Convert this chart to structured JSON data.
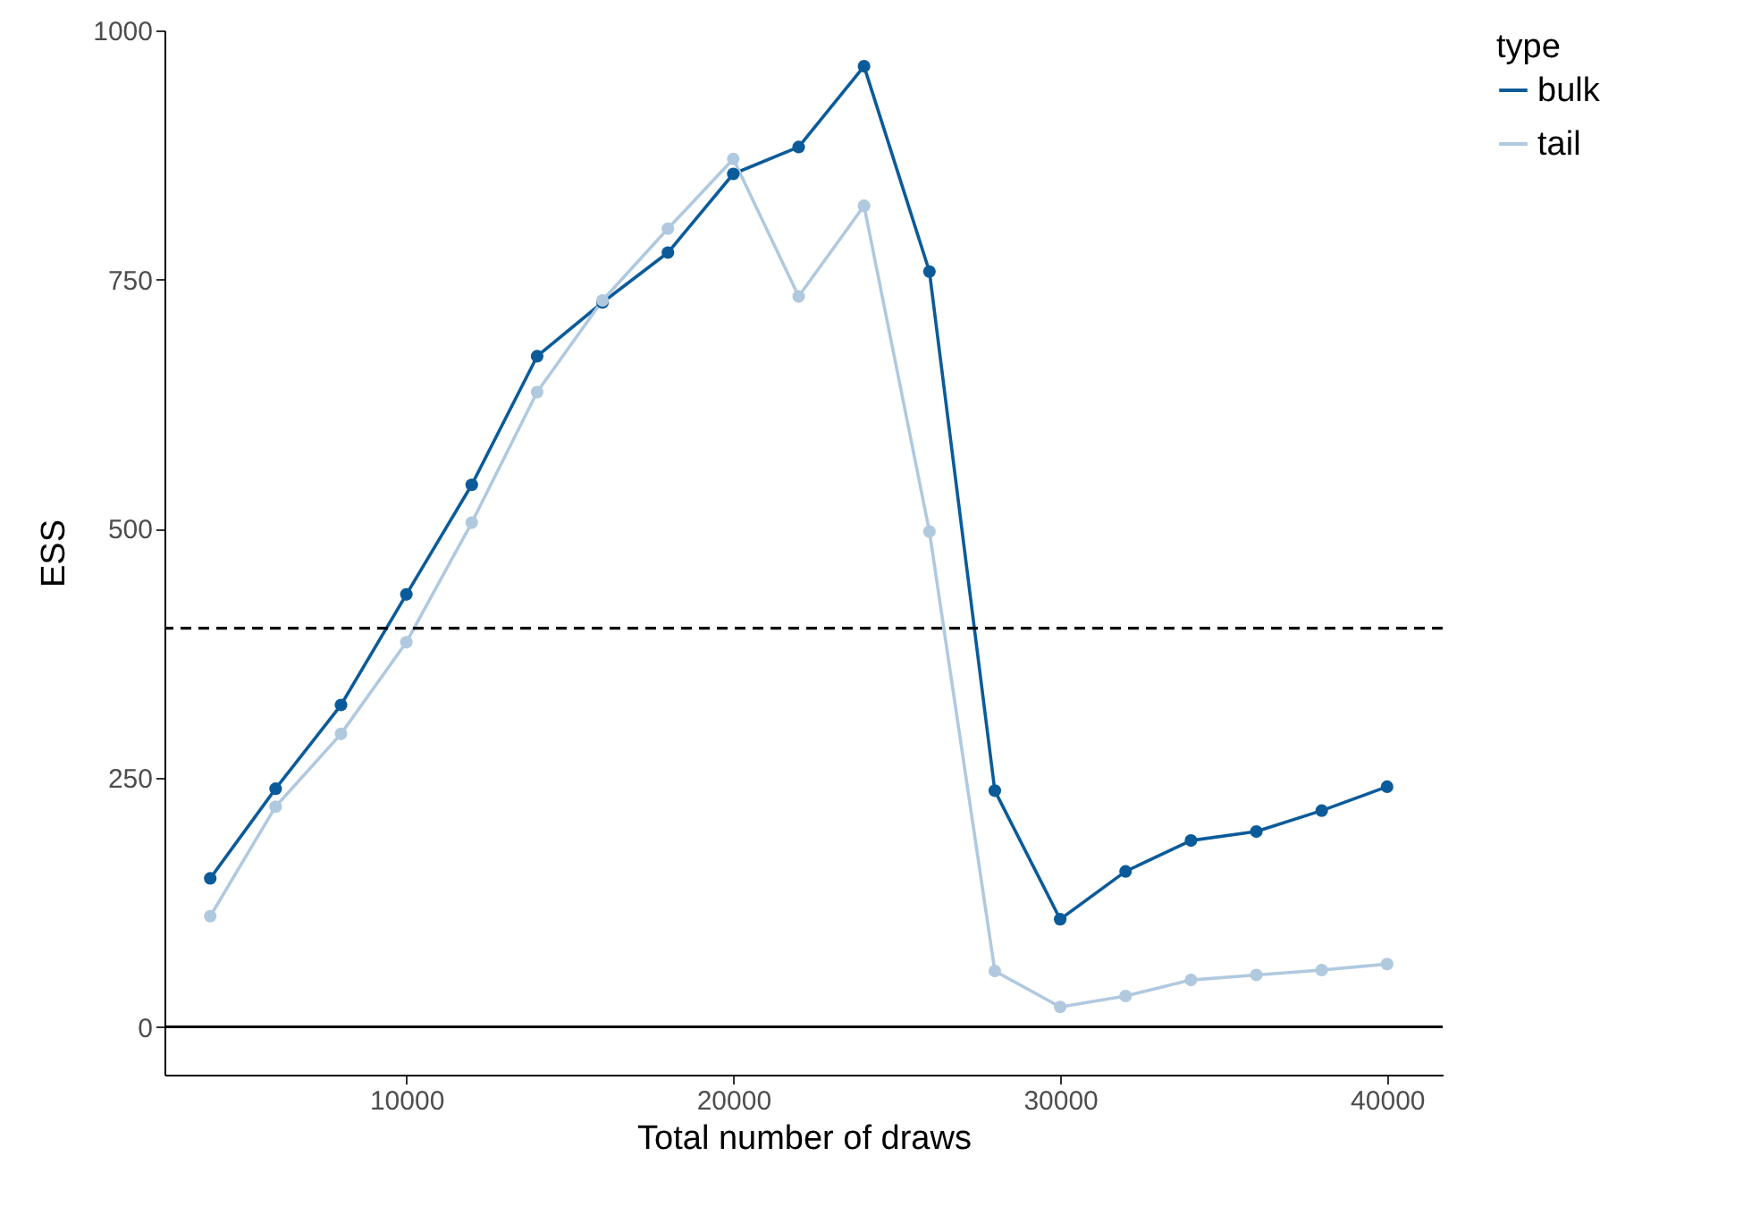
{
  "chart_data": {
    "type": "line",
    "xlabel": "Total number of draws",
    "ylabel": "ESS",
    "legend_title": "type",
    "legend": "right",
    "marker": "circle",
    "line_style": "solid",
    "grid": false,
    "x": [
      4000,
      6000,
      8000,
      10000,
      12000,
      14000,
      16000,
      18000,
      20000,
      22000,
      24000,
      26000,
      28000,
      30000,
      32000,
      34000,
      36000,
      38000,
      40000
    ],
    "series": [
      {
        "name": "bulk",
        "color": "#0b5b9a",
        "values": [
          149,
          239,
          323,
          434,
          544,
          673,
          727,
          777,
          856,
          883,
          964,
          758,
          237,
          108,
          156,
          187,
          196,
          217,
          241
        ]
      },
      {
        "name": "tail",
        "color": "#b0c9df",
        "values": [
          111,
          221,
          294,
          386,
          506,
          637,
          729,
          801,
          871,
          733,
          824,
          497,
          56,
          20,
          31,
          47,
          52,
          57,
          63
        ]
      }
    ],
    "xlim": [
      2600,
      41700
    ],
    "xticks": [
      10000,
      20000,
      30000,
      40000
    ],
    "ylim": [
      -48,
      1000
    ],
    "yticks": [
      0,
      250,
      500,
      750,
      1000
    ],
    "ref_lines": [
      {
        "axis": "y",
        "value": 400,
        "line_style": "dashed",
        "color": "#000000"
      },
      {
        "axis": "y",
        "value": 0,
        "line_style": "solid",
        "color": "#000000"
      }
    ]
  }
}
